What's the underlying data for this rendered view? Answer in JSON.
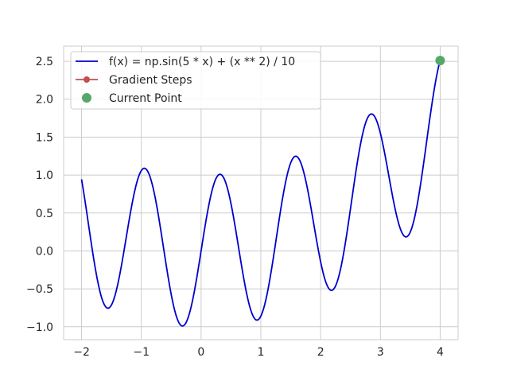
{
  "chart_data": {
    "type": "line",
    "title": "",
    "xlabel": "",
    "ylabel": "",
    "xlim": [
      -2.3,
      4.3
    ],
    "ylim": [
      -1.17,
      2.7
    ],
    "xticks": [
      -2,
      -1,
      0,
      1,
      2,
      3,
      4
    ],
    "xtick_labels": [
      "−2",
      "−1",
      "0",
      "1",
      "2",
      "3",
      "4"
    ],
    "yticks": [
      -1.0,
      -0.5,
      0.0,
      0.5,
      1.0,
      1.5,
      2.0,
      2.5
    ],
    "ytick_labels": [
      "−1.0",
      "−0.5",
      "0.0",
      "0.5",
      "1.0",
      "1.5",
      "2.0",
      "2.5"
    ],
    "grid": true,
    "legend_position": "top-left",
    "series": [
      {
        "name": "f(x) = np.sin(5 * x)  + (x ** 2) / 10",
        "kind": "line",
        "color": "#0000cd",
        "x_range": [
          -2,
          4
        ],
        "expression": "sin(5*x) + x^2/10"
      },
      {
        "name": "Gradient Steps",
        "kind": "line-marker",
        "color": "#c44e52",
        "x": [],
        "y": []
      },
      {
        "name": "Current Point",
        "kind": "marker",
        "color": "#55a868",
        "x": [
          4.0
        ],
        "y": [
          2.51
        ]
      }
    ]
  }
}
